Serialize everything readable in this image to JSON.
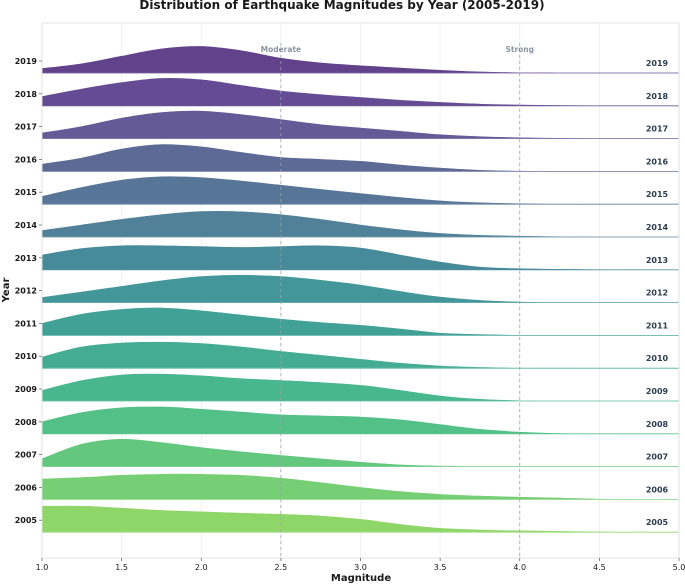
{
  "chart_data": {
    "type": "area",
    "subtype": "ridgeline",
    "title": "Distribution of Earthquake Magnitudes by Year (2005-2019)",
    "xlabel": "Magnitude",
    "ylabel": "Year",
    "xlim": [
      1.0,
      5.0
    ],
    "xticks": [
      "1.0",
      "1.5",
      "2.0",
      "2.5",
      "3.0",
      "3.5",
      "4.0",
      "4.5",
      "5.0"
    ],
    "grid": true,
    "reference_lines": [
      {
        "x": 2.5,
        "label": "Moderate"
      },
      {
        "x": 4.0,
        "label": "Strong"
      }
    ],
    "x": [
      1.0,
      1.25,
      1.5,
      1.75,
      2.0,
      2.25,
      2.5,
      2.75,
      3.0,
      3.25,
      3.5,
      3.75,
      4.0,
      4.25,
      4.5,
      4.75,
      5.0
    ],
    "series": [
      {
        "name": "2019",
        "color": "#5c3c87",
        "values": [
          0.18,
          0.35,
          0.62,
          0.88,
          0.97,
          0.82,
          0.55,
          0.38,
          0.28,
          0.2,
          0.12,
          0.06,
          0.03,
          0.02,
          0.01,
          0.005,
          0.0
        ]
      },
      {
        "name": "2018",
        "color": "#5f4590",
        "values": [
          0.35,
          0.62,
          0.85,
          1.0,
          0.95,
          0.75,
          0.55,
          0.42,
          0.32,
          0.22,
          0.14,
          0.08,
          0.05,
          0.03,
          0.02,
          0.01,
          0.0
        ]
      },
      {
        "name": "2017",
        "color": "#5f5593",
        "values": [
          0.22,
          0.45,
          0.75,
          0.95,
          1.0,
          0.88,
          0.7,
          0.52,
          0.4,
          0.28,
          0.16,
          0.09,
          0.05,
          0.03,
          0.02,
          0.01,
          0.0
        ]
      },
      {
        "name": "2016",
        "color": "#596593",
        "values": [
          0.28,
          0.5,
          0.82,
          0.98,
          0.9,
          0.7,
          0.52,
          0.45,
          0.38,
          0.25,
          0.14,
          0.06,
          0.03,
          0.01,
          0.005,
          0.0,
          0.0
        ]
      },
      {
        "name": "2015",
        "color": "#527294",
        "values": [
          0.3,
          0.62,
          0.88,
          1.0,
          0.97,
          0.85,
          0.7,
          0.55,
          0.4,
          0.26,
          0.14,
          0.07,
          0.04,
          0.02,
          0.01,
          0.005,
          0.0
        ]
      },
      {
        "name": "2014",
        "color": "#4b7c96",
        "values": [
          0.25,
          0.45,
          0.65,
          0.82,
          0.93,
          0.92,
          0.82,
          0.65,
          0.45,
          0.28,
          0.15,
          0.08,
          0.05,
          0.03,
          0.02,
          0.01,
          0.005
        ]
      },
      {
        "name": "2013",
        "color": "#418696",
        "values": [
          0.55,
          0.78,
          0.88,
          0.88,
          0.85,
          0.82,
          0.85,
          0.88,
          0.8,
          0.55,
          0.3,
          0.12,
          0.06,
          0.04,
          0.02,
          0.01,
          0.005
        ]
      },
      {
        "name": "2012",
        "color": "#3d9396",
        "values": [
          0.2,
          0.4,
          0.6,
          0.8,
          0.95,
          1.0,
          0.95,
          0.82,
          0.65,
          0.42,
          0.22,
          0.1,
          0.04,
          0.02,
          0.01,
          0.005,
          0.0
        ]
      },
      {
        "name": "2011",
        "color": "#3b9e93",
        "values": [
          0.45,
          0.78,
          0.95,
          1.0,
          0.9,
          0.75,
          0.6,
          0.48,
          0.38,
          0.25,
          0.1,
          0.05,
          0.02,
          0.01,
          0.005,
          0.0,
          0.0
        ]
      },
      {
        "name": "2010",
        "color": "#3ea98f",
        "values": [
          0.42,
          0.78,
          0.92,
          0.95,
          0.9,
          0.78,
          0.62,
          0.48,
          0.34,
          0.2,
          0.1,
          0.05,
          0.02,
          0.01,
          0.005,
          0.0,
          0.0
        ]
      },
      {
        "name": "2009",
        "color": "#42b48a",
        "values": [
          0.4,
          0.75,
          0.95,
          0.98,
          0.92,
          0.82,
          0.75,
          0.68,
          0.58,
          0.4,
          0.2,
          0.08,
          0.03,
          0.01,
          0.005,
          0.0,
          0.0
        ]
      },
      {
        "name": "2008",
        "color": "#4cbe83",
        "values": [
          0.45,
          0.78,
          0.95,
          0.98,
          0.9,
          0.8,
          0.7,
          0.66,
          0.62,
          0.52,
          0.35,
          0.18,
          0.08,
          0.03,
          0.015,
          0.01,
          0.005
        ]
      },
      {
        "name": "2007",
        "color": "#5ec67a",
        "values": [
          0.3,
          0.82,
          1.0,
          0.88,
          0.7,
          0.55,
          0.42,
          0.3,
          0.18,
          0.08,
          0.04,
          0.02,
          0.01,
          0.005,
          0.0,
          0.0,
          0.0
        ]
      },
      {
        "name": "2006",
        "color": "#72cd71",
        "values": [
          0.75,
          0.8,
          0.88,
          0.92,
          0.92,
          0.88,
          0.78,
          0.62,
          0.45,
          0.3,
          0.2,
          0.14,
          0.1,
          0.07,
          0.03,
          0.01,
          0.0
        ]
      },
      {
        "name": "2005",
        "color": "#8bd563",
        "values": [
          0.95,
          0.95,
          0.88,
          0.8,
          0.75,
          0.7,
          0.66,
          0.6,
          0.48,
          0.3,
          0.16,
          0.1,
          0.07,
          0.05,
          0.03,
          0.01,
          0.0
        ]
      }
    ]
  }
}
